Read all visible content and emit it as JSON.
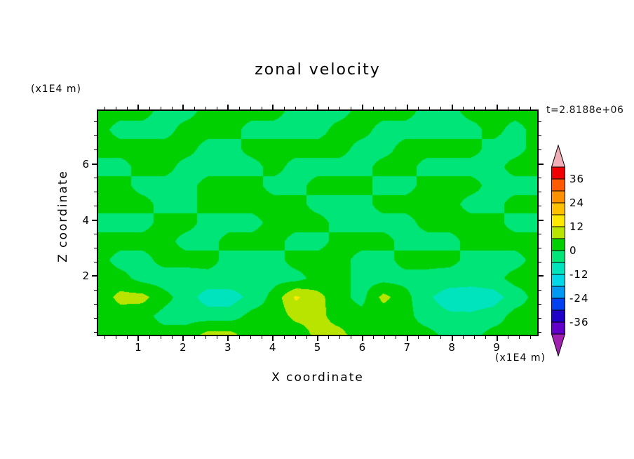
{
  "title": "zonal velocity",
  "annotations": {
    "time_label": "t=2.8188e+06",
    "y_axis_unit": "(x1E4 m)",
    "x_axis_unit": "(x1E4 m)"
  },
  "axes": {
    "x_label": "X coordinate",
    "y_label": "Z coordinate"
  },
  "chart_data": {
    "type": "heatmap",
    "title": "zonal velocity",
    "xlabel": "X coordinate (x1E4 m)",
    "ylabel": "Z coordinate (x1E4 m)",
    "time": "t=2.8188e+06",
    "x_range": [
      0.1,
      9.9
    ],
    "z_range": [
      -0.1,
      7.9
    ],
    "x_ticks": [
      1,
      2,
      3,
      4,
      5,
      6,
      7,
      8,
      9
    ],
    "z_ticks": [
      2,
      4,
      6
    ],
    "x_minor_step": 0.25,
    "z_minor_step": 0.5,
    "grid": "off",
    "legend_position": "right-colorbar",
    "levels_min": -42,
    "level_step": 6,
    "colorbar_labels": [
      36,
      24,
      12,
      0,
      -12,
      -24,
      -36
    ],
    "band_colors": [
      "#6000C8",
      "#2000C8",
      "#0040F0",
      "#0098F0",
      "#00D8E8",
      "#00E4BE",
      "#00E578",
      "#00D000",
      "#B8E400",
      "#FFE900",
      "#FFC000",
      "#FF9000",
      "#FF5A00",
      "#F00000"
    ],
    "under_color": "#A020B0",
    "over_color": "#F2AEB6",
    "grid_values": [
      [
        2,
        2,
        2,
        -2,
        -2,
        2,
        2,
        2,
        2,
        -2,
        -2,
        -2,
        2,
        2,
        2,
        -2,
        -2,
        2,
        2,
        2,
        2
      ],
      [
        2,
        -2,
        -2,
        -2,
        2,
        2,
        2,
        -2,
        -2,
        -2,
        -2,
        2,
        2,
        -2,
        -2,
        -2,
        -2,
        -2,
        2,
        -2,
        2
      ],
      [
        2,
        2,
        2,
        2,
        2,
        -2,
        -2,
        2,
        2,
        2,
        2,
        2,
        -2,
        -2,
        2,
        2,
        2,
        2,
        -2,
        -2,
        2
      ],
      [
        -2,
        -2,
        2,
        2,
        -2,
        -2,
        -2,
        -2,
        2,
        -2,
        -2,
        -2,
        -2,
        2,
        2,
        -2,
        -2,
        -2,
        -2,
        2,
        2
      ],
      [
        2,
        2,
        -2,
        -2,
        -2,
        2,
        2,
        2,
        -2,
        -2,
        2,
        2,
        2,
        -2,
        -2,
        2,
        2,
        2,
        -2,
        -2,
        -2
      ],
      [
        2,
        2,
        2,
        -2,
        -2,
        2,
        2,
        2,
        2,
        2,
        -2,
        -2,
        -2,
        2,
        2,
        2,
        2,
        -2,
        -2,
        2,
        2
      ],
      [
        -2,
        -2,
        -2,
        2,
        2,
        -2,
        -2,
        -2,
        2,
        2,
        2,
        -2,
        -2,
        -2,
        -2,
        2,
        2,
        2,
        2,
        -2,
        -2
      ],
      [
        2,
        2,
        2,
        2,
        -2,
        -2,
        2,
        2,
        2,
        -2,
        -2,
        2,
        2,
        2,
        -2,
        -2,
        -2,
        2,
        2,
        2,
        2
      ],
      [
        2,
        -2,
        -2,
        2,
        2,
        2,
        -2,
        -2,
        -2,
        2,
        2,
        2,
        -2,
        -2,
        2,
        2,
        2,
        -2,
        -2,
        -2,
        2
      ],
      [
        2,
        2,
        -2,
        -3,
        -3,
        -2,
        -2,
        -3,
        -2,
        -2,
        2,
        2,
        -2,
        -2,
        -2,
        -2,
        -3,
        -3,
        -2,
        2,
        2
      ],
      [
        2,
        8,
        8,
        2,
        -3,
        -9,
        -9,
        -4,
        2,
        13,
        8,
        2,
        -2,
        8,
        2,
        -5,
        -9,
        -10,
        -9,
        -3,
        2
      ],
      [
        2,
        3,
        2,
        -2,
        -2,
        -3,
        -3,
        2,
        2,
        8,
        8,
        3,
        2,
        2,
        2,
        -3,
        -5,
        -5,
        -3,
        2,
        2
      ],
      [
        2,
        2,
        2,
        2,
        2,
        8,
        8,
        2,
        2,
        2,
        8,
        8,
        2,
        2,
        2,
        2,
        -2,
        -2,
        2,
        2,
        2
      ]
    ]
  }
}
